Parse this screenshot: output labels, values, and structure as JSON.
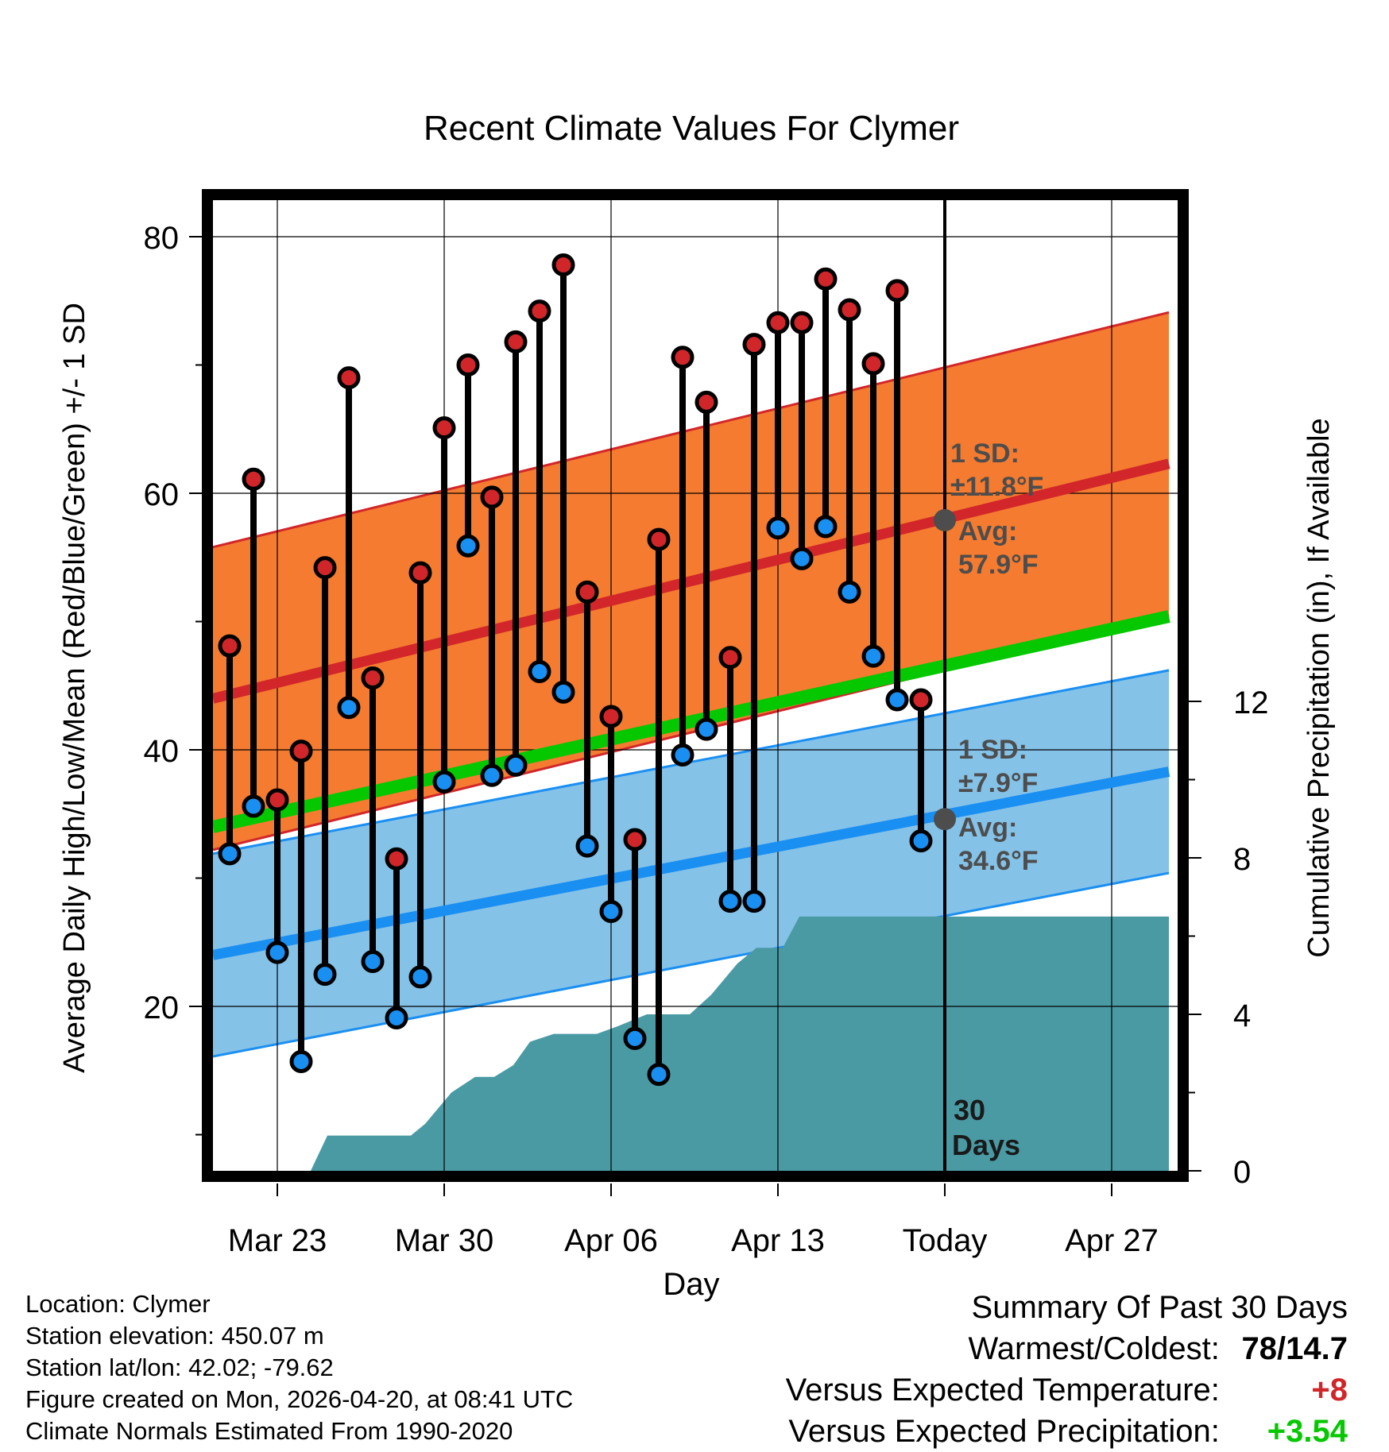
{
  "chart_data": {
    "type": "line",
    "title": "Recent Climate Values For Clymer",
    "xlabel": "Day",
    "ylabel": "Average Daily High/Low/Mean (Red/Blue/Green) +/- 1 SD",
    "y2label": "Cumulative Precipitation (in), If Available",
    "ylim": [
      6,
      84
    ],
    "y2lim": [
      0,
      24.8
    ],
    "yticks": [
      "80",
      "60",
      "40",
      "20"
    ],
    "y2ticks": [
      "0",
      "4",
      "8",
      "12"
    ],
    "xticks": [
      "Mar 23",
      "Mar 30",
      "Apr 06",
      "Apr 13",
      "Today",
      "Apr 27"
    ],
    "x_note": "x in days relative to Mar 23 (0); Today = 28; range -2.7 to 37.4",
    "xlim": [
      -2.7,
      37.4
    ],
    "today_x": 28,
    "days": [
      -2,
      -1,
      0,
      1,
      2,
      3,
      4,
      5,
      6,
      7,
      8,
      9,
      10,
      11,
      12,
      13,
      14,
      15,
      16,
      17,
      18,
      19,
      20,
      21,
      22,
      23,
      24,
      25,
      26,
      27
    ],
    "highs": [
      48.1,
      61.1,
      36.1,
      39.9,
      54.2,
      69.0,
      45.6,
      31.5,
      53.8,
      65.1,
      70.0,
      59.7,
      71.8,
      74.2,
      77.8,
      52.3,
      42.6,
      33.0,
      56.4,
      70.6,
      67.1,
      47.2,
      71.6,
      73.3,
      73.3,
      76.7,
      74.3,
      70.1,
      75.8,
      43.9
    ],
    "lows": [
      31.9,
      35.6,
      24.2,
      15.7,
      22.5,
      43.3,
      23.5,
      19.1,
      22.3,
      37.5,
      55.9,
      38.0,
      38.8,
      46.1,
      44.5,
      32.5,
      27.4,
      17.5,
      14.7,
      39.6,
      41.6,
      28.2,
      28.2,
      57.3,
      54.9,
      57.4,
      52.3,
      47.3,
      43.9,
      32.9
    ],
    "mean_normal": {
      "start": 34.0,
      "end": 50.4
    },
    "high_normal": {
      "start": 44.0,
      "end": 62.3,
      "sd": 11.8
    },
    "low_normal": {
      "start": 24.0,
      "end": 38.3,
      "sd": 7.9
    },
    "precip_cumulative": [
      [
        -2.7,
        0
      ],
      [
        1.4,
        0
      ],
      [
        2.1,
        0.9
      ],
      [
        5.6,
        0.9
      ],
      [
        6.2,
        1.2
      ],
      [
        7.3,
        2.0
      ],
      [
        8.3,
        2.4
      ],
      [
        9.1,
        2.4
      ],
      [
        9.9,
        2.7
      ],
      [
        10.6,
        3.3
      ],
      [
        11.6,
        3.5
      ],
      [
        13.4,
        3.5
      ],
      [
        14.3,
        3.7
      ],
      [
        15.5,
        4.0
      ],
      [
        17.3,
        4.0
      ],
      [
        18.2,
        4.5
      ],
      [
        19.3,
        5.3
      ],
      [
        20.1,
        5.7
      ],
      [
        21.2,
        5.7
      ],
      [
        21.9,
        6.5
      ],
      [
        24.5,
        6.5
      ],
      [
        37.4,
        6.5
      ]
    ],
    "annotations": {
      "high_sd": "1 SD:",
      "high_sd_val": "±11.8°F",
      "high_avg": "Avg:",
      "high_avg_val": "57.9°F",
      "low_sd": "1 SD:",
      "low_sd_val": "±7.9°F",
      "low_avg": "Avg:",
      "low_avg_val": "34.6°F",
      "days_num": "30",
      "days_word": "Days"
    },
    "high_avg_today": 57.9,
    "low_avg_today": 34.6,
    "colors": {
      "high_band": "#f47b30",
      "high_line": "#d2262a",
      "low_band": "#85c2e8",
      "low_line": "#1a8ff2",
      "mean_line": "#05c800",
      "precip": "#4a9aa4",
      "high_dot": "#d0262a",
      "low_dot": "#1a8ff2",
      "overlap": "#96161b",
      "annot": "#4d4d4d"
    }
  },
  "footer": {
    "location": "Location: Clymer",
    "elevation": "Station elevation: 450.07 m",
    "latlon": "Station lat/lon: 42.02; -79.62",
    "created": "Figure created on Mon, 2026-04-20, at 08:41 UTC",
    "normals": "Climate Normals Estimated From 1990-2020"
  },
  "summary": {
    "title": "Summary Of Past 30 Days",
    "warm_label": "Warmest/Coldest:",
    "warm_value": "78/14.7",
    "temp_label": "Versus Expected Temperature:",
    "temp_value": "+8",
    "temp_color": "#d0262a",
    "precip_label": "Versus Expected Precipitation:",
    "precip_value": "+3.54",
    "precip_color": "#05c800"
  }
}
